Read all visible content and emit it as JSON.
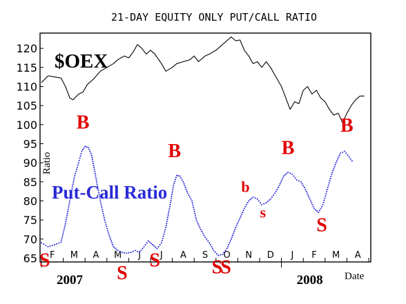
{
  "chart_data": {
    "type": "line",
    "title": "21-DAY EQUITY ONLY PUT/CALL RATIO",
    "ylabel": "Ratio",
    "xlabel": "Date",
    "ylim": [
      64,
      124
    ],
    "yticks": [
      65,
      70,
      75,
      80,
      85,
      90,
      95,
      100,
      105,
      110,
      115,
      120
    ],
    "month_ticks": [
      "F",
      "M",
      "A",
      "M",
      "J",
      "J",
      "A",
      "S",
      "O",
      "N",
      "D",
      "J",
      "F",
      "M",
      "A"
    ],
    "years": [
      {
        "label": "2007",
        "month_index": 0
      },
      {
        "label": "2008",
        "month_index": 11
      }
    ],
    "grid": false,
    "series": [
      {
        "name": "$OEX",
        "style": "line",
        "color": "#000000",
        "values": [
          [
            0,
            111
          ],
          [
            0.3,
            112.8
          ],
          [
            0.6,
            112.5
          ],
          [
            0.9,
            112.2
          ],
          [
            1.1,
            110
          ],
          [
            1.3,
            107
          ],
          [
            1.45,
            106.5
          ],
          [
            1.7,
            108
          ],
          [
            1.9,
            108.5
          ],
          [
            2.1,
            110.5
          ],
          [
            2.4,
            112
          ],
          [
            2.7,
            114
          ],
          [
            3.0,
            115
          ],
          [
            3.3,
            116
          ],
          [
            3.5,
            117
          ],
          [
            3.8,
            118
          ],
          [
            4.0,
            117.5
          ],
          [
            4.2,
            119
          ],
          [
            4.4,
            121
          ],
          [
            4.6,
            120
          ],
          [
            4.8,
            118.5
          ],
          [
            5.0,
            119.5
          ],
          [
            5.2,
            118.5
          ],
          [
            5.5,
            116
          ],
          [
            5.7,
            114
          ],
          [
            6.0,
            115
          ],
          [
            6.2,
            116
          ],
          [
            6.5,
            116.5
          ],
          [
            6.8,
            117
          ],
          [
            7.0,
            118
          ],
          [
            7.2,
            116.5
          ],
          [
            7.5,
            118
          ],
          [
            7.7,
            118.5
          ],
          [
            8.0,
            119.5
          ],
          [
            8.3,
            121
          ],
          [
            8.5,
            122
          ],
          [
            8.7,
            123
          ],
          [
            8.9,
            122
          ],
          [
            9.1,
            122.2
          ],
          [
            9.3,
            119.5
          ],
          [
            9.5,
            118
          ],
          [
            9.7,
            116
          ],
          [
            9.9,
            116.5
          ],
          [
            10.1,
            115
          ],
          [
            10.3,
            116.5
          ],
          [
            10.5,
            115
          ],
          [
            10.7,
            113
          ],
          [
            11.0,
            110
          ],
          [
            11.2,
            107
          ],
          [
            11.4,
            104
          ],
          [
            11.6,
            106
          ],
          [
            11.8,
            105.5
          ],
          [
            12.0,
            109
          ],
          [
            12.2,
            110
          ],
          [
            12.4,
            108
          ],
          [
            12.6,
            109
          ],
          [
            12.8,
            107
          ],
          [
            13.0,
            106
          ],
          [
            13.2,
            104
          ],
          [
            13.4,
            102.5
          ],
          [
            13.6,
            103
          ],
          [
            13.8,
            100.5
          ],
          [
            14.0,
            103
          ],
          [
            14.2,
            105
          ],
          [
            14.4,
            106.5
          ],
          [
            14.6,
            107.5
          ],
          [
            14.8,
            107.5
          ]
        ]
      },
      {
        "name": "Put-Call Ratio",
        "style": "dotted",
        "color": "#2a2ad8",
        "values": [
          [
            0,
            69
          ],
          [
            0.3,
            68
          ],
          [
            0.6,
            68.5
          ],
          [
            0.9,
            69.2
          ],
          [
            1.1,
            74
          ],
          [
            1.3,
            80
          ],
          [
            1.5,
            86
          ],
          [
            1.7,
            90
          ],
          [
            1.85,
            93
          ],
          [
            2.0,
            94.3
          ],
          [
            2.15,
            94
          ],
          [
            2.3,
            92
          ],
          [
            2.5,
            86
          ],
          [
            2.7,
            80
          ],
          [
            2.9,
            75
          ],
          [
            3.1,
            71
          ],
          [
            3.3,
            68
          ],
          [
            3.5,
            67
          ],
          [
            3.7,
            66.5
          ],
          [
            3.9,
            66.3
          ],
          [
            4.1,
            66.5
          ],
          [
            4.3,
            67
          ],
          [
            4.5,
            66.5
          ],
          [
            4.7,
            68
          ],
          [
            4.9,
            69.5
          ],
          [
            5.1,
            68.5
          ],
          [
            5.3,
            67.5
          ],
          [
            5.5,
            69
          ],
          [
            5.7,
            73
          ],
          [
            5.9,
            79
          ],
          [
            6.05,
            84
          ],
          [
            6.2,
            86.7
          ],
          [
            6.35,
            86.5
          ],
          [
            6.5,
            85
          ],
          [
            6.7,
            82
          ],
          [
            6.9,
            80
          ],
          [
            7.1,
            75
          ],
          [
            7.3,
            72.5
          ],
          [
            7.5,
            70.5
          ],
          [
            7.7,
            69
          ],
          [
            7.9,
            67
          ],
          [
            8.1,
            65.7
          ],
          [
            8.3,
            66
          ],
          [
            8.5,
            67.5
          ],
          [
            8.7,
            70
          ],
          [
            8.9,
            73
          ],
          [
            9.1,
            75.5
          ],
          [
            9.3,
            78
          ],
          [
            9.5,
            80
          ],
          [
            9.7,
            81
          ],
          [
            9.9,
            80.5
          ],
          [
            10.1,
            79
          ],
          [
            10.3,
            79.5
          ],
          [
            10.5,
            80.5
          ],
          [
            10.7,
            82
          ],
          [
            10.9,
            84
          ],
          [
            11.1,
            86.5
          ],
          [
            11.3,
            87.5
          ],
          [
            11.5,
            87
          ],
          [
            11.7,
            85.5
          ],
          [
            11.9,
            85
          ],
          [
            12.1,
            83
          ],
          [
            12.3,
            80.5
          ],
          [
            12.5,
            78
          ],
          [
            12.7,
            77
          ],
          [
            12.9,
            79
          ],
          [
            13.1,
            83
          ],
          [
            13.3,
            87
          ],
          [
            13.5,
            90
          ],
          [
            13.7,
            92.5
          ],
          [
            13.9,
            93
          ],
          [
            14.1,
            91.5
          ],
          [
            14.3,
            90
          ]
        ]
      }
    ],
    "signals": [
      {
        "text": "B",
        "x": 1.9,
        "y": 99,
        "size": "large"
      },
      {
        "text": "S",
        "x": 0.15,
        "y": 62.8,
        "size": "large"
      },
      {
        "text": "S",
        "x": 3.7,
        "y": 59.5,
        "size": "large"
      },
      {
        "text": "S",
        "x": 5.2,
        "y": 62.8,
        "size": "large"
      },
      {
        "text": "B",
        "x": 6.1,
        "y": 91.5,
        "size": "large"
      },
      {
        "text": "S",
        "x": 8.05,
        "y": 61,
        "size": "large"
      },
      {
        "text": "S",
        "x": 8.45,
        "y": 61,
        "size": "large"
      },
      {
        "text": "b",
        "x": 9.35,
        "y": 82.3,
        "size": "medium"
      },
      {
        "text": "s",
        "x": 10.15,
        "y": 75.7,
        "size": "medium"
      },
      {
        "text": "B",
        "x": 11.3,
        "y": 92.3,
        "size": "large"
      },
      {
        "text": "S",
        "x": 12.85,
        "y": 72,
        "size": "large"
      },
      {
        "text": "B",
        "x": 14.0,
        "y": 98.2,
        "size": "large"
      }
    ],
    "labels": {
      "oex": "$OEX",
      "pcr": "Put-Call Ratio"
    }
  }
}
